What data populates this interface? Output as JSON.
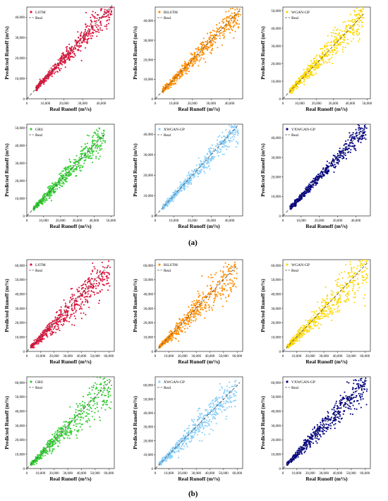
{
  "figure": {
    "panel_labels": [
      "(a)",
      "(b)"
    ],
    "colors": {
      "LSTM": "#dc143c",
      "BiLSTM": "#ff8c00",
      "WGAN-GP": "#ffd700",
      "GRU": "#32cd32",
      "XWGAN-GP": "#87cefa",
      "VXWGAN-GP": "#000080",
      "Real": "#555555"
    }
  },
  "chart_data": [
    {
      "type": "scatter",
      "panel": "(a)",
      "series": [
        {
          "name": "LSTM",
          "color": "#dc143c",
          "x_range": [
            5000,
            46000
          ],
          "y_range": [
            5000,
            44000
          ],
          "slope": 0.98,
          "spread": 0.09
        },
        {
          "name": "Real",
          "style": "dashed",
          "x": [
            0,
            46000
          ],
          "y": [
            0,
            46000
          ]
        }
      ],
      "xlabel": "Real Runoff (m³/s)",
      "ylabel": "Predicted Runoff (m³/s)",
      "xlim": [
        0,
        47000
      ],
      "ylim": [
        0,
        45000
      ],
      "xticks": [
        0,
        10000,
        20000,
        30000,
        40000
      ],
      "xtick_labels": [
        "0",
        "10,000",
        "20,000",
        "30,000",
        "40,000"
      ],
      "yticks": [
        0,
        10000,
        20000,
        30000,
        40000
      ],
      "ytick_labels": [
        "0",
        "10,000",
        "20,000",
        "30,000",
        "40,000"
      ],
      "legend": "top-left"
    },
    {
      "type": "scatter",
      "panel": "(a)",
      "series": [
        {
          "name": "BiLSTM",
          "color": "#ff8c00",
          "x_range": [
            4000,
            46000
          ],
          "y_range": [
            4000,
            45000
          ],
          "slope": 0.98,
          "spread": 0.1
        },
        {
          "name": "Real",
          "style": "dashed",
          "x": [
            0,
            46000
          ],
          "y": [
            0,
            46000
          ]
        }
      ],
      "xlabel": "Real Runoff (m³/s)",
      "ylabel": "Predicted Runoff (m³/s)",
      "xlim": [
        0,
        47000
      ],
      "ylim": [
        0,
        47000
      ],
      "xticks": [
        0,
        10000,
        20000,
        30000,
        40000
      ],
      "xtick_labels": [
        "0",
        "10,000",
        "20,000",
        "30,000",
        "40,000"
      ],
      "yticks": [
        0,
        10000,
        20000,
        30000,
        40000
      ],
      "ytick_labels": [
        "0",
        "10,000",
        "20,000",
        "30,000",
        "40,000"
      ],
      "legend": "top-left"
    },
    {
      "type": "scatter",
      "panel": "(a)",
      "series": [
        {
          "name": "WGAN-GP",
          "color": "#ffd700",
          "x_range": [
            4000,
            48000
          ],
          "y_range": [
            4000,
            50000
          ],
          "slope": 1.0,
          "spread": 0.13
        },
        {
          "name": "Real",
          "style": "dashed",
          "x": [
            0,
            48000
          ],
          "y": [
            0,
            48000
          ]
        }
      ],
      "xlabel": "Real Runoff (m³/s)",
      "ylabel": "Predicted Runoff (m³/s)",
      "xlim": [
        0,
        52000
      ],
      "ylim": [
        0,
        52000
      ],
      "xticks": [
        0,
        10000,
        20000,
        30000,
        40000,
        50000
      ],
      "xtick_labels": [
        "0",
        "10,000",
        "20,000",
        "30,000",
        "40,000",
        "50,000"
      ],
      "yticks": [
        0,
        10000,
        20000,
        30000,
        40000,
        50000
      ],
      "ytick_labels": [
        "0",
        "10,000",
        "20,000",
        "30,000",
        "40,000",
        "50,000"
      ],
      "legend": "top-left"
    },
    {
      "type": "scatter",
      "panel": "(a)",
      "series": [
        {
          "name": "GRU",
          "color": "#32cd32",
          "x_range": [
            4000,
            47000
          ],
          "y_range": [
            4000,
            49000
          ],
          "slope": 1.0,
          "spread": 0.11
        },
        {
          "name": "Real",
          "style": "dashed",
          "x": [
            0,
            47000
          ],
          "y": [
            0,
            47000
          ]
        }
      ],
      "xlabel": "Real Runoff (m³/s)",
      "ylabel": "Predicted Runoff (m³/s)",
      "xlim": [
        0,
        52000
      ],
      "ylim": [
        0,
        52000
      ],
      "xticks": [
        0,
        10000,
        20000,
        30000,
        40000,
        50000
      ],
      "xtick_labels": [
        "0",
        "10,000",
        "20,000",
        "30,000",
        "40,000",
        "50,000"
      ],
      "yticks": [
        0,
        10000,
        20000,
        30000,
        40000,
        50000
      ],
      "ytick_labels": [
        "0",
        "10,000",
        "20,000",
        "30,000",
        "40,000",
        "50,000"
      ],
      "legend": "top-left"
    },
    {
      "type": "scatter",
      "panel": "(a)",
      "series": [
        {
          "name": "XWGAN-GP",
          "color": "#87cefa",
          "x_range": [
            4000,
            45000
          ],
          "y_range": [
            4000,
            43000
          ],
          "slope": 0.98,
          "spread": 0.08
        },
        {
          "name": "Real",
          "style": "dashed",
          "x": [
            0,
            45000
          ],
          "y": [
            0,
            45000
          ]
        }
      ],
      "xlabel": "Real Runoff (m³/s)",
      "ylabel": "Predicted Runoff (m³/s)",
      "xlim": [
        0,
        47000
      ],
      "ylim": [
        0,
        45000
      ],
      "xticks": [
        0,
        10000,
        20000,
        30000,
        40000
      ],
      "xtick_labels": [
        "0",
        "10,000",
        "20,000",
        "30,000",
        "40,000"
      ],
      "yticks": [
        0,
        10000,
        20000,
        30000,
        40000
      ],
      "ytick_labels": [
        "0",
        "10,000",
        "20,000",
        "30,000",
        "40,000"
      ],
      "legend": "top-left"
    },
    {
      "type": "scatter",
      "panel": "(a)",
      "series": [
        {
          "name": "VXWGAN-GP",
          "color": "#000080",
          "x_range": [
            4000,
            46000
          ],
          "y_range": [
            4000,
            45000
          ],
          "slope": 0.99,
          "spread": 0.07
        },
        {
          "name": "Real",
          "style": "dashed",
          "x": [
            0,
            46000
          ],
          "y": [
            0,
            46000
          ]
        }
      ],
      "xlabel": "Real Runoff (m³/s)",
      "ylabel": "Predicted Runoff (m³/s)",
      "xlim": [
        0,
        48000
      ],
      "ylim": [
        0,
        47000
      ],
      "xticks": [
        0,
        10000,
        20000,
        30000,
        40000
      ],
      "xtick_labels": [
        "0",
        "10,000",
        "20,000",
        "30,000",
        "40,000"
      ],
      "yticks": [
        0,
        10000,
        20000,
        30000,
        40000
      ],
      "ytick_labels": [
        "0",
        "10,000",
        "20,000",
        "30,000",
        "40,000"
      ],
      "legend": "top-left"
    },
    {
      "type": "scatter",
      "panel": "(b)",
      "series": [
        {
          "name": "LSTM",
          "color": "#dc143c",
          "x_range": [
            3000,
            61000
          ],
          "y_range": [
            3000,
            55000
          ],
          "slope": 0.95,
          "spread": 0.16
        },
        {
          "name": "Real",
          "style": "dashed",
          "x": [
            0,
            60000
          ],
          "y": [
            0,
            60000
          ]
        }
      ],
      "xlabel": "Real Runoff (m³/s)",
      "ylabel": "Predicted Runoff (m³/s)",
      "xlim": [
        0,
        64000
      ],
      "ylim": [
        0,
        64000
      ],
      "xticks": [
        0,
        10000,
        20000,
        30000,
        40000,
        50000,
        60000
      ],
      "xtick_labels": [
        "0",
        "10,000",
        "20,000",
        "30,000",
        "40,000",
        "50,000",
        "60,000"
      ],
      "yticks": [
        0,
        10000,
        20000,
        30000,
        40000,
        50000,
        60000
      ],
      "ytick_labels": [
        "0",
        "10,000",
        "20,000",
        "30,000",
        "40,000",
        "50,000",
        "60,000"
      ],
      "legend": "top-left"
    },
    {
      "type": "scatter",
      "panel": "(b)",
      "series": [
        {
          "name": "BiLSTM",
          "color": "#ff8c00",
          "x_range": [
            3000,
            60000
          ],
          "y_range": [
            3000,
            60000
          ],
          "slope": 0.97,
          "spread": 0.16
        },
        {
          "name": "Real",
          "style": "dashed",
          "x": [
            0,
            60000
          ],
          "y": [
            0,
            60000
          ]
        }
      ],
      "xlabel": "Real Runoff (m³/s)",
      "ylabel": "Predicted Runoff (m³/s)",
      "xlim": [
        0,
        64000
      ],
      "ylim": [
        0,
        64000
      ],
      "xticks": [
        0,
        10000,
        20000,
        30000,
        40000,
        50000,
        60000
      ],
      "xtick_labels": [
        "0",
        "10,000",
        "20,000",
        "30,000",
        "40,000",
        "50,000",
        "60,000"
      ],
      "yticks": [
        0,
        10000,
        20000,
        30000,
        40000,
        50000,
        60000
      ],
      "ytick_labels": [
        "0",
        "10,000",
        "20,000",
        "30,000",
        "40,000",
        "50,000",
        "60,000"
      ],
      "legend": "top-left"
    },
    {
      "type": "scatter",
      "panel": "(b)",
      "series": [
        {
          "name": "WGAN-GP",
          "color": "#ffd700",
          "x_range": [
            3000,
            62000
          ],
          "y_range": [
            3000,
            58000
          ],
          "slope": 0.96,
          "spread": 0.17
        },
        {
          "name": "Real",
          "style": "dashed",
          "x": [
            0,
            62000
          ],
          "y": [
            0,
            62000
          ]
        }
      ],
      "xlabel": "Real Runoff (m³/s)",
      "ylabel": "Predicted Runoff (m³/s)",
      "xlim": [
        0,
        64000
      ],
      "ylim": [
        0,
        64000
      ],
      "xticks": [
        0,
        10000,
        20000,
        30000,
        40000,
        50000,
        60000
      ],
      "xtick_labels": [
        "0",
        "10,000",
        "20,000",
        "30,000",
        "40,000",
        "50,000",
        "60,000"
      ],
      "yticks": [
        0,
        10000,
        20000,
        30000,
        40000,
        50000,
        60000
      ],
      "ytick_labels": [
        "0",
        "10,000",
        "20,000",
        "30,000",
        "40,000",
        "50,000",
        "60,000"
      ],
      "legend": "top-left"
    },
    {
      "type": "scatter",
      "panel": "(b)",
      "series": [
        {
          "name": "GRU",
          "color": "#32cd32",
          "x_range": [
            3000,
            62000
          ],
          "y_range": [
            3000,
            58000
          ],
          "slope": 0.95,
          "spread": 0.16
        },
        {
          "name": "Real",
          "style": "dashed",
          "x": [
            0,
            62000
          ],
          "y": [
            0,
            62000
          ]
        }
      ],
      "xlabel": "Real Runoff (m³/s)",
      "ylabel": "Predicted Runoff (m³/s)",
      "xlim": [
        0,
        64000
      ],
      "ylim": [
        0,
        64000
      ],
      "xticks": [
        0,
        10000,
        20000,
        30000,
        40000,
        50000,
        60000
      ],
      "xtick_labels": [
        "0",
        "10,000",
        "20,000",
        "30,000",
        "40,000",
        "50,000",
        "60,000"
      ],
      "yticks": [
        0,
        10000,
        20000,
        30000,
        40000,
        50000,
        60000
      ],
      "ytick_labels": [
        "0",
        "10,000",
        "20,000",
        "30,000",
        "40,000",
        "50,000",
        "60,000"
      ],
      "legend": "top-left"
    },
    {
      "type": "scatter",
      "panel": "(b)",
      "series": [
        {
          "name": "XWGAN-GP",
          "color": "#87cefa",
          "x_range": [
            3000,
            60000
          ],
          "y_range": [
            3000,
            62000
          ],
          "slope": 0.98,
          "spread": 0.15
        },
        {
          "name": "Real",
          "style": "dashed",
          "x": [
            0,
            62000
          ],
          "y": [
            0,
            62000
          ]
        }
      ],
      "xlabel": "Real Runoff (m³/s)",
      "ylabel": "Predicted Runoff (m³/s)",
      "xlim": [
        0,
        64000
      ],
      "ylim": [
        0,
        66000
      ],
      "xticks": [
        0,
        10000,
        20000,
        30000,
        40000,
        50000,
        60000
      ],
      "xtick_labels": [
        "0",
        "10,000",
        "20,000",
        "30,000",
        "40,000",
        "50,000",
        "60,000"
      ],
      "yticks": [
        0,
        10000,
        20000,
        30000,
        40000,
        50000,
        60000
      ],
      "ytick_labels": [
        "0",
        "10,000",
        "20,000",
        "30,000",
        "40,000",
        "50,000",
        "60,000"
      ],
      "legend": "top-left"
    },
    {
      "type": "scatter",
      "panel": "(b)",
      "series": [
        {
          "name": "VXWGAN-GP",
          "color": "#000080",
          "x_range": [
            3000,
            62000
          ],
          "y_range": [
            3000,
            62000
          ],
          "slope": 0.99,
          "spread": 0.12
        },
        {
          "name": "Real",
          "style": "dashed",
          "x": [
            0,
            62000
          ],
          "y": [
            0,
            62000
          ]
        }
      ],
      "xlabel": "Real Runoff (m³/s)",
      "ylabel": "Predicted Runoff (m³/s)",
      "xlim": [
        0,
        64000
      ],
      "ylim": [
        0,
        64000
      ],
      "xticks": [
        0,
        10000,
        20000,
        30000,
        40000,
        50000,
        60000
      ],
      "xtick_labels": [
        "0",
        "10,000",
        "20,000",
        "30,000",
        "40,000",
        "50,000",
        "60,000"
      ],
      "yticks": [
        0,
        10000,
        20000,
        30000,
        40000,
        50000,
        60000
      ],
      "ytick_labels": [
        "0",
        "10,000",
        "20,000",
        "30,000",
        "40,000",
        "50,000",
        "60,000"
      ],
      "legend": "top-left"
    }
  ]
}
